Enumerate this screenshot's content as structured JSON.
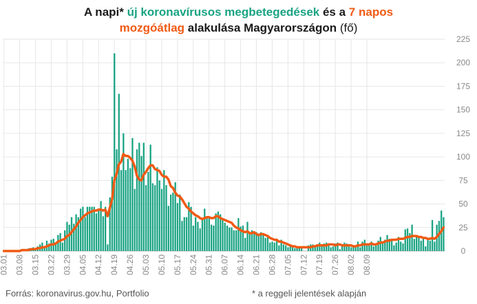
{
  "title": {
    "p1": "A napi* ",
    "p2": "új koronavírusos megbetegedések",
    "p3": " és a ",
    "p4": "7 napos",
    "p5": "mozgóátlag",
    "p6": " alakulása Magyarországon ",
    "p7": "(fő)"
  },
  "footer": {
    "source": "Forrás: koronavirus.gov.hu, Portfolio",
    "note": "* a reggeli jelentések alapján"
  },
  "colors": {
    "bars": "#1aa383",
    "line": "#f05a14",
    "grid": "#e6e6e6",
    "ticks": "#888888"
  },
  "chart_data": {
    "type": "bar",
    "ylim": [
      0,
      225
    ],
    "yticks": [
      0,
      25,
      50,
      75,
      100,
      125,
      150,
      175,
      200,
      225
    ],
    "xticks": [
      "03.01",
      "03.08",
      "03.15",
      "03.22",
      "03.29",
      "04.05",
      "04.12",
      "04.19",
      "04.26",
      "05.03",
      "05.10",
      "05.17",
      "05.24",
      "05.31",
      "06.07",
      "06.14",
      "06.21",
      "06.28",
      "07.05",
      "07.12",
      "07.19",
      "07.26",
      "08.02",
      "08.09"
    ],
    "grid": true,
    "series": [
      {
        "name": "új koronavírusos megbetegedések",
        "type": "bar",
        "values": [
          0,
          0,
          0,
          0,
          1,
          0,
          0,
          1,
          1,
          2,
          2,
          3,
          3,
          4,
          2,
          5,
          7,
          9,
          4,
          11,
          8,
          12,
          13,
          9,
          17,
          19,
          9,
          22,
          31,
          28,
          36,
          29,
          39,
          36,
          45,
          47,
          36,
          47,
          47,
          47,
          47,
          40,
          43,
          53,
          37,
          47,
          7,
          57,
          79,
          210,
          108,
          167,
          86,
          125,
          86,
          98,
          88,
          120,
          66,
          108,
          115,
          101,
          115,
          70,
          84,
          113,
          72,
          70,
          89,
          75,
          66,
          86,
          70,
          48,
          60,
          62,
          73,
          51,
          60,
          32,
          36,
          36,
          52,
          47,
          27,
          36,
          31,
          24,
          35,
          45,
          36,
          35,
          28,
          27,
          40,
          42,
          39,
          35,
          30,
          27,
          25,
          25,
          22,
          22,
          35,
          26,
          27,
          14,
          31,
          18,
          22,
          20,
          20,
          16,
          20,
          19,
          14,
          16,
          9,
          10,
          9,
          12,
          6,
          12,
          7,
          6,
          4,
          5,
          6,
          3,
          4,
          4,
          3,
          0,
          0,
          6,
          7,
          7,
          4,
          7,
          9,
          5,
          8,
          9,
          8,
          4,
          5,
          8,
          9,
          2,
          6,
          9,
          8,
          6,
          4,
          4,
          4,
          10,
          4,
          10,
          12,
          6,
          6,
          10,
          5,
          6,
          11,
          15,
          8,
          12,
          17,
          13,
          13,
          6,
          9,
          15,
          10,
          8,
          23,
          24,
          19,
          28,
          13,
          15,
          15,
          11,
          14,
          5,
          14,
          11,
          33,
          10,
          28,
          32,
          43,
          36
        ]
      },
      {
        "name": "7 napos mozgóátlag",
        "type": "line",
        "values": [
          0,
          0,
          0,
          0,
          0,
          0,
          0,
          0,
          1,
          1,
          1,
          1,
          2,
          2,
          2,
          3,
          3,
          4,
          4,
          5,
          6,
          7,
          7,
          8,
          10,
          11,
          12,
          13,
          16,
          17,
          20,
          23,
          26,
          30,
          33,
          36,
          38,
          40,
          41,
          42,
          43,
          43,
          44,
          44,
          43,
          44,
          37,
          46,
          55,
          75,
          82,
          92,
          95,
          103,
          101,
          101,
          99,
          96,
          90,
          80,
          76,
          75,
          81,
          84,
          88,
          91,
          91,
          87,
          86,
          85,
          81,
          79,
          79,
          76,
          69,
          67,
          62,
          59,
          58,
          55,
          51,
          47,
          45,
          42,
          40,
          38,
          37,
          35,
          34,
          35,
          36,
          36,
          35,
          35,
          37,
          37,
          35,
          34,
          33,
          32,
          31,
          30,
          27,
          25,
          24,
          22,
          21,
          20,
          21,
          19,
          19,
          20,
          18,
          17,
          18,
          18,
          17,
          16,
          14,
          13,
          12,
          12,
          10,
          10,
          9,
          8,
          7,
          6,
          5,
          5,
          4,
          4,
          4,
          4,
          4,
          4,
          4,
          5,
          5,
          6,
          6,
          6,
          6,
          6,
          7,
          7,
          7,
          6,
          7,
          7,
          6,
          6,
          6,
          6,
          6,
          5,
          5,
          6,
          6,
          7,
          7,
          7,
          7,
          8,
          7,
          7,
          8,
          9,
          9,
          10,
          11,
          11,
          12,
          12,
          12,
          13,
          13,
          13,
          14,
          15,
          15,
          16,
          16,
          16,
          15,
          15,
          14,
          14,
          13,
          13,
          14,
          13,
          15,
          18,
          21,
          25
        ]
      }
    ]
  }
}
